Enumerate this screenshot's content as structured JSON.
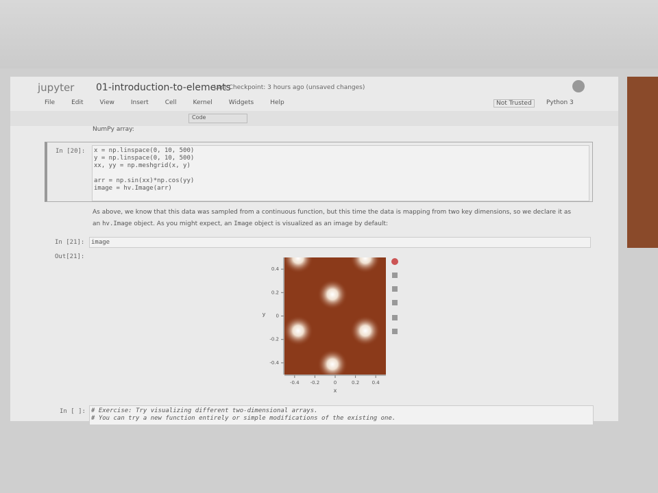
{
  "header": {
    "logo": "jupyter",
    "notebook_name": "01-introduction-to-elements",
    "checkpoint": "Last Checkpoint: 3 hours ago (unsaved changes)"
  },
  "menu": [
    "File",
    "Edit",
    "View",
    "Insert",
    "Cell",
    "Kernel",
    "Widgets",
    "Help"
  ],
  "status": {
    "trust": "Not Trusted",
    "kernel": "Python 3"
  },
  "toolbar": {
    "cell_type": "Code"
  },
  "cells": {
    "prev_text": "NumPy array:",
    "code1": {
      "prompt": "In [20]:",
      "lines": [
        "x = np.linspace(0, 10, 500)",
        "y = np.linspace(0, 10, 500)",
        "xx, yy = np.meshgrid(x, y)",
        "arr = np.sin(xx)*np.cos(yy)",
        "image = hv.Image(arr)"
      ]
    },
    "markdown": [
      "As above, we know that this data was sampled from a continuous function, but this time the data is mapping from two key dimensions, so we declare it as an",
      "hv.Image",
      "object. As you might expect, an",
      "Image",
      "object is visualized as an image by default:"
    ],
    "code2": {
      "prompt": "In [21]:",
      "lines": [
        "image"
      ]
    },
    "output": {
      "prompt": "Out[21]:"
    },
    "code3": {
      "prompt": "In [ ]:",
      "lines": [
        "# Exercise: Try visualizing different two-dimensional arrays.",
        "# You can try a new function entirely or simple modifications of the existing one."
      ]
    }
  },
  "plot": {
    "xlabel": "x",
    "ylabel": "y",
    "xlim": [
      -0.5,
      0.5
    ],
    "ylim": [
      -0.5,
      0.5
    ],
    "xticks": [
      -0.4,
      -0.2,
      0,
      0.2,
      0.4
    ],
    "yticks": [
      -0.4,
      -0.2,
      0,
      0.2,
      0.4
    ],
    "color": "#8b3a1a"
  }
}
